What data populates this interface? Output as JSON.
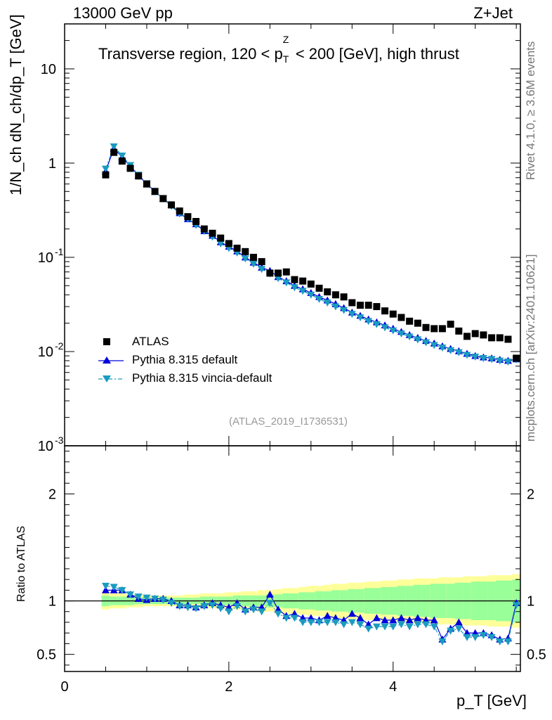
{
  "header": {
    "energy_label": "13000 GeV pp",
    "process_label": "Z+Jet",
    "plot_title": "Transverse region, 120 < p",
    "plot_title_sup": "Z",
    "plot_title_sub": "T",
    "plot_title_tail": " < 200 [GeV], high thrust",
    "ref_label": "(ATLAS_2019_I1736531)"
  },
  "side_labels": {
    "rivet": "Rivet 4.1.0, ≥ 3.6M events",
    "mcplots": "mcplots.cern.ch [arXiv:2401.10621]"
  },
  "axes": {
    "y_main_title": "1/N_ch dN_ch/dp_T [GeV]",
    "y_ratio_title": "Ratio to ATLAS",
    "x_title": "p_T [GeV]",
    "x_ticks": [
      "0",
      "2",
      "4"
    ],
    "y_main_ticks": [
      "10",
      "1",
      "10^-1",
      "10^-2",
      "10^-3"
    ],
    "y_ratio_ticks": [
      "2",
      "1",
      "0.5"
    ]
  },
  "legend": {
    "atlas": "ATLAS",
    "pythia_default": "Pythia 8.315 default",
    "pythia_vincia": "Pythia 8.315 vincia-default"
  },
  "colors": {
    "atlas": "#000000",
    "pythia_default": "#0000dd",
    "pythia_vincia": "#1a9bbf",
    "band_outer": "#ffff99",
    "band_inner": "#99ff99"
  },
  "chart_data": {
    "type": "scatter",
    "x": [
      0.5,
      0.6,
      0.7,
      0.8,
      0.9,
      1.0,
      1.1,
      1.2,
      1.3,
      1.4,
      1.5,
      1.6,
      1.7,
      1.8,
      1.9,
      2.0,
      2.1,
      2.2,
      2.3,
      2.4,
      2.5,
      2.6,
      2.7,
      2.8,
      2.9,
      3.0,
      3.1,
      3.2,
      3.3,
      3.4,
      3.5,
      3.6,
      3.7,
      3.8,
      3.9,
      4.0,
      4.1,
      4.2,
      4.3,
      4.4,
      4.5,
      4.6,
      4.7,
      4.8,
      4.9,
      5.0,
      5.1,
      5.2,
      5.3,
      5.4,
      5.5
    ],
    "xlim": [
      0,
      5.55
    ],
    "ylim_main": [
      0.001,
      30
    ],
    "ylim_ratio": [
      0.34,
      2.45
    ],
    "series": [
      {
        "name": "ATLAS",
        "values": [
          0.75,
          1.3,
          1.05,
          0.88,
          0.73,
          0.6,
          0.5,
          0.42,
          0.36,
          0.31,
          0.27,
          0.24,
          0.2,
          0.18,
          0.16,
          0.14,
          0.125,
          0.115,
          0.1,
          0.09,
          0.068,
          0.068,
          0.07,
          0.058,
          0.056,
          0.052,
          0.047,
          0.043,
          0.04,
          0.038,
          0.033,
          0.031,
          0.031,
          0.03,
          0.027,
          0.025,
          0.023,
          0.021,
          0.02,
          0.018,
          0.0175,
          0.0175,
          0.0195,
          0.0165,
          0.0145,
          0.0155,
          0.015,
          0.014,
          0.014,
          0.0135,
          0.0085
        ]
      },
      {
        "name": "Pythia 8.315 default",
        "values": [
          0.82,
          1.43,
          1.16,
          0.92,
          0.74,
          0.6,
          0.5,
          0.42,
          0.36,
          0.295,
          0.255,
          0.225,
          0.19,
          0.17,
          0.145,
          0.13,
          0.116,
          0.1,
          0.088,
          0.078,
          0.072,
          0.062,
          0.056,
          0.05,
          0.046,
          0.042,
          0.038,
          0.035,
          0.032,
          0.029,
          0.026,
          0.024,
          0.022,
          0.0205,
          0.019,
          0.0175,
          0.0162,
          0.015,
          0.014,
          0.013,
          0.0122,
          0.0114,
          0.0107,
          0.0101,
          0.0095,
          0.009,
          0.0087,
          0.0085,
          0.0082,
          0.008,
          0.0083
        ]
      },
      {
        "name": "Pythia 8.315 vincia-default",
        "values": [
          0.87,
          1.5,
          1.2,
          0.95,
          0.75,
          0.61,
          0.5,
          0.42,
          0.35,
          0.29,
          0.255,
          0.22,
          0.19,
          0.165,
          0.14,
          0.125,
          0.112,
          0.097,
          0.085,
          0.075,
          0.067,
          0.06,
          0.054,
          0.048,
          0.044,
          0.04,
          0.036,
          0.033,
          0.03,
          0.0275,
          0.025,
          0.023,
          0.021,
          0.0195,
          0.018,
          0.0167,
          0.0155,
          0.0144,
          0.0134,
          0.0125,
          0.0117,
          0.011,
          0.0103,
          0.0098,
          0.0092,
          0.0088,
          0.0085,
          0.0083,
          0.008,
          0.0078,
          0.0082
        ]
      }
    ],
    "ratio": {
      "ylabel": "Ratio to ATLAS",
      "series": [
        {
          "name": "Pythia 8.315 default",
          "values": [
            1.1,
            1.1,
            1.1,
            1.06,
            1.02,
            1.01,
            1.02,
            1.02,
            1.0,
            0.96,
            0.96,
            0.94,
            0.96,
            0.98,
            0.96,
            0.94,
            0.98,
            0.92,
            0.94,
            0.94,
            1.06,
            0.92,
            0.86,
            0.88,
            0.84,
            0.84,
            0.82,
            0.86,
            0.84,
            0.82,
            0.88,
            0.84,
            0.78,
            0.84,
            0.82,
            0.82,
            0.84,
            0.82,
            0.84,
            0.82,
            0.82,
            0.64,
            0.74,
            0.8,
            0.7,
            0.7,
            0.7,
            0.68,
            0.64,
            0.65,
            0.98
          ]
        },
        {
          "name": "Pythia 8.315 vincia-default",
          "values": [
            1.14,
            1.13,
            1.1,
            1.06,
            1.04,
            1.03,
            1.02,
            1.01,
            0.98,
            0.95,
            0.94,
            0.93,
            0.95,
            0.96,
            0.93,
            0.9,
            0.95,
            0.9,
            0.92,
            0.9,
            0.98,
            0.88,
            0.84,
            0.84,
            0.8,
            0.8,
            0.8,
            0.8,
            0.8,
            0.78,
            0.8,
            0.78,
            0.74,
            0.76,
            0.76,
            0.76,
            0.78,
            0.76,
            0.78,
            0.78,
            0.76,
            0.62,
            0.72,
            0.74,
            0.66,
            0.66,
            0.68,
            0.66,
            0.62,
            0.62,
            0.96
          ]
        }
      ],
      "band_inner": [
        0.05,
        0.04,
        0.04,
        0.04,
        0.03,
        0.03,
        0.03,
        0.03,
        0.03,
        0.03,
        0.03,
        0.03,
        0.04,
        0.04,
        0.04,
        0.04,
        0.05,
        0.05,
        0.05,
        0.05,
        0.06,
        0.06,
        0.07,
        0.07,
        0.08,
        0.08,
        0.09,
        0.09,
        0.1,
        0.1,
        0.11,
        0.11,
        0.12,
        0.12,
        0.13,
        0.13,
        0.14,
        0.14,
        0.15,
        0.15,
        0.16,
        0.16,
        0.16,
        0.17,
        0.17,
        0.18,
        0.18,
        0.18,
        0.19,
        0.19,
        0.2
      ],
      "band_outer": [
        0.08,
        0.07,
        0.07,
        0.06,
        0.06,
        0.05,
        0.05,
        0.05,
        0.05,
        0.05,
        0.06,
        0.06,
        0.07,
        0.07,
        0.07,
        0.08,
        0.08,
        0.09,
        0.09,
        0.1,
        0.1,
        0.11,
        0.12,
        0.12,
        0.13,
        0.14,
        0.14,
        0.15,
        0.16,
        0.16,
        0.17,
        0.17,
        0.18,
        0.18,
        0.19,
        0.19,
        0.2,
        0.2,
        0.21,
        0.21,
        0.21,
        0.22,
        0.22,
        0.22,
        0.23,
        0.23,
        0.23,
        0.24,
        0.24,
        0.24,
        0.25
      ]
    }
  }
}
